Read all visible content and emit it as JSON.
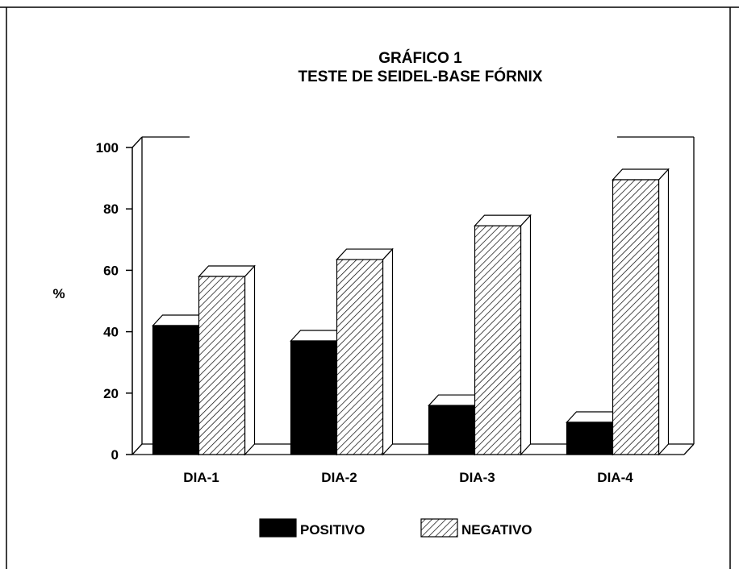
{
  "chart_data": {
    "type": "bar",
    "title": "GRÁFICO 1",
    "subtitle": "TESTE DE SEIDEL-BASE FÓRNIX",
    "xlabel": "",
    "ylabel": "%",
    "categories": [
      "DIA-1",
      "DIA-2",
      "DIA-3",
      "DIA-4"
    ],
    "yticks": [
      "0",
      "20",
      "40",
      "60",
      "80",
      "100"
    ],
    "ylim": [
      0,
      100
    ],
    "grid": false,
    "legend_position": "bottom",
    "series": [
      {
        "name": "POSITIVO",
        "values": [
          42,
          37,
          16,
          10.5
        ],
        "fill": "#000000",
        "pattern": "solid"
      },
      {
        "name": "NEGATIVO",
        "values": [
          58,
          63.5,
          74.5,
          89.5
        ],
        "fill": "#ffffff",
        "pattern": "diagonal-hatch"
      }
    ]
  }
}
